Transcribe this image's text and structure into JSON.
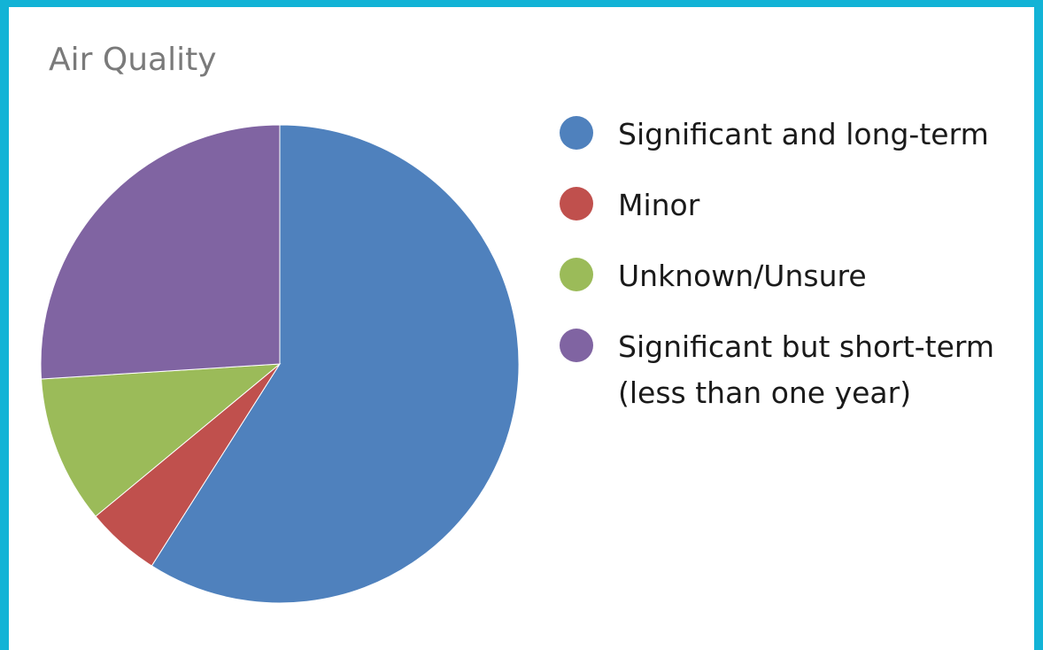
{
  "chart_data": {
    "type": "pie",
    "title": "Air Quality",
    "slices": [
      {
        "label": "Significant and long-term",
        "value": 59,
        "color": "#4f81bd"
      },
      {
        "label": "Minor",
        "value": 5,
        "color": "#c0504d"
      },
      {
        "label": "Unknown/Unsure",
        "value": 10,
        "color": "#9bbb59"
      },
      {
        "label": "Significant but short-term\n(less than one year)",
        "value": 26,
        "color": "#8064a2"
      }
    ],
    "legend_position": "right"
  }
}
